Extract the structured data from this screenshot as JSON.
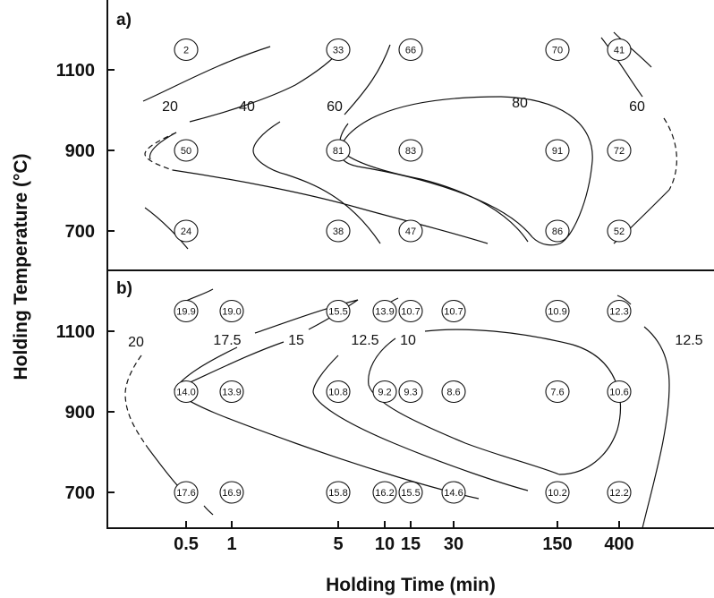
{
  "chart_data": [
    {
      "type": "contour",
      "panel_label": "a)",
      "xlabel": "Holding Time  (min)",
      "ylabel": "Holding Temperature (°C)",
      "x_ticks": [
        "0.5",
        "1",
        "5",
        "10",
        "15",
        "30",
        "150",
        "400"
      ],
      "y_ticks": [
        "1100",
        "900",
        "700"
      ],
      "contour_levels": [
        "20",
        "40",
        "60",
        "80",
        "60"
      ],
      "points": [
        {
          "time": "0.5",
          "temp": 1150,
          "value": "2"
        },
        {
          "time": "5",
          "temp": 1150,
          "value": "33"
        },
        {
          "time": "15",
          "temp": 1150,
          "value": "66"
        },
        {
          "time": "150",
          "temp": 1150,
          "value": "70"
        },
        {
          "time": "400",
          "temp": 1150,
          "value": "41"
        },
        {
          "time": "0.5",
          "temp": 900,
          "value": "50"
        },
        {
          "time": "5",
          "temp": 900,
          "value": "81"
        },
        {
          "time": "15",
          "temp": 900,
          "value": "83"
        },
        {
          "time": "150",
          "temp": 900,
          "value": "91"
        },
        {
          "time": "400",
          "temp": 900,
          "value": "72"
        },
        {
          "time": "0.5",
          "temp": 700,
          "value": "24"
        },
        {
          "time": "5",
          "temp": 700,
          "value": "38"
        },
        {
          "time": "15",
          "temp": 700,
          "value": "47"
        },
        {
          "time": "150",
          "temp": 700,
          "value": "86"
        },
        {
          "time": "400",
          "temp": 700,
          "value": "52"
        }
      ]
    },
    {
      "type": "contour",
      "panel_label": "b)",
      "xlabel": "Holding Time  (min)",
      "ylabel": "Holding Temperature (°C)",
      "x_ticks": [
        "0.5",
        "1",
        "5",
        "10",
        "15",
        "30",
        "150",
        "400"
      ],
      "y_ticks": [
        "1100",
        "900",
        "700"
      ],
      "contour_levels": [
        "20",
        "17.5",
        "15",
        "12.5",
        "10",
        "12.5"
      ],
      "points": [
        {
          "time": "0.5",
          "temp": 1150,
          "value": "19.9"
        },
        {
          "time": "1",
          "temp": 1150,
          "value": "19.0"
        },
        {
          "time": "5",
          "temp": 1150,
          "value": "15.5"
        },
        {
          "time": "10",
          "temp": 1150,
          "value": "13.9"
        },
        {
          "time": "15",
          "temp": 1150,
          "value": "10.7"
        },
        {
          "time": "30",
          "temp": 1150,
          "value": "10.7"
        },
        {
          "time": "150",
          "temp": 1150,
          "value": "10.9"
        },
        {
          "time": "400",
          "temp": 1150,
          "value": "12.3"
        },
        {
          "time": "0.5",
          "temp": 950,
          "value": "14.0"
        },
        {
          "time": "1",
          "temp": 950,
          "value": "13.9"
        },
        {
          "time": "5",
          "temp": 950,
          "value": "10.8"
        },
        {
          "time": "10",
          "temp": 950,
          "value": "9.2"
        },
        {
          "time": "15",
          "temp": 950,
          "value": "9.3"
        },
        {
          "time": "30",
          "temp": 950,
          "value": "8.6"
        },
        {
          "time": "150",
          "temp": 950,
          "value": "7.6"
        },
        {
          "time": "400",
          "temp": 950,
          "value": "10.6"
        },
        {
          "time": "0.5",
          "temp": 700,
          "value": "17.6"
        },
        {
          "time": "1",
          "temp": 700,
          "value": "16.9"
        },
        {
          "time": "5",
          "temp": 700,
          "value": "15.8"
        },
        {
          "time": "10",
          "temp": 700,
          "value": "16.2"
        },
        {
          "time": "15",
          "temp": 700,
          "value": "15.5"
        },
        {
          "time": "30",
          "temp": 700,
          "value": "14.6"
        },
        {
          "time": "150",
          "temp": 700,
          "value": "10.2"
        },
        {
          "time": "400",
          "temp": 700,
          "value": "12.2"
        }
      ]
    }
  ]
}
